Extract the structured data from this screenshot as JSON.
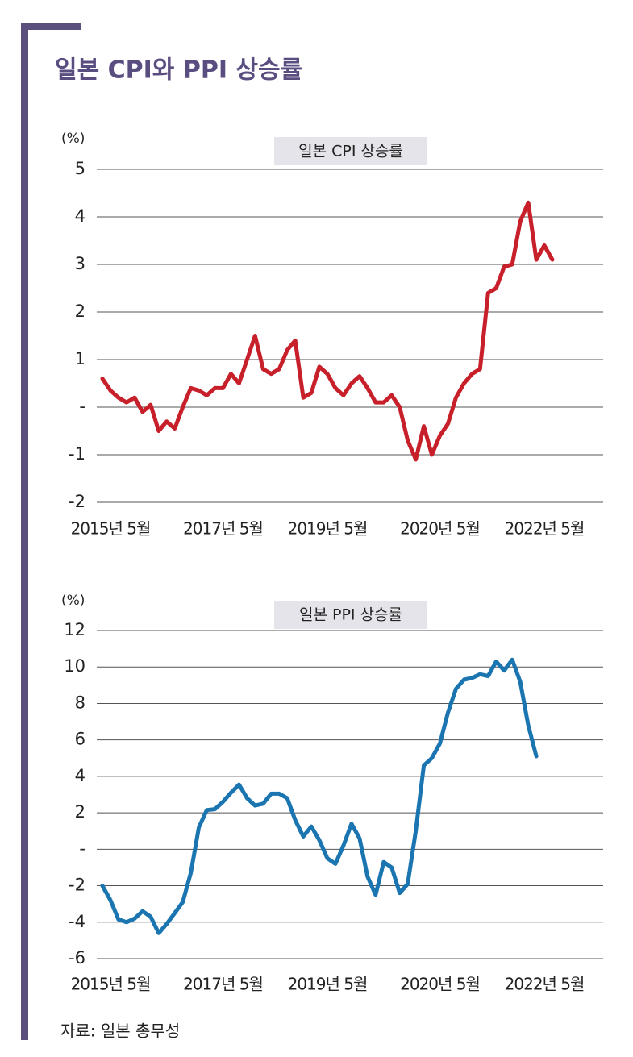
{
  "title": "일본 CPI와 PPI 상승률",
  "source": "자료: 일본 총무성",
  "chart_data": [
    {
      "type": "line",
      "title": "일본 CPI 상승률",
      "y_label": "(%)",
      "color": "#c8202b",
      "categories": [
        null,
        "2015년 5월",
        null,
        null,
        null,
        null,
        null,
        null,
        null,
        null,
        null,
        null,
        null,
        null,
        null,
        "2017년 5월",
        null,
        null,
        null,
        null,
        null,
        null,
        null,
        null,
        null,
        null,
        null,
        null,
        "2019년 5월",
        null,
        null,
        null,
        null,
        null,
        null,
        null,
        null,
        null,
        null,
        null,
        null,
        null,
        "2020년 5월",
        null,
        null,
        null,
        null,
        null,
        null,
        null,
        null,
        null,
        null,
        null,
        null,
        "2022년 5월",
        null
      ],
      "values": [
        0.6,
        0.35,
        0.2,
        0.1,
        0.2,
        -0.1,
        0.05,
        -0.5,
        -0.3,
        -0.45,
        0.0,
        0.4,
        0.35,
        0.25,
        0.4,
        0.4,
        0.7,
        0.5,
        1.0,
        1.5,
        0.8,
        0.7,
        0.8,
        1.2,
        1.4,
        0.2,
        0.3,
        0.85,
        0.7,
        0.4,
        0.25,
        0.5,
        0.65,
        0.4,
        0.1,
        0.1,
        0.25,
        0.0,
        -0.7,
        -1.1,
        -0.4,
        -1.0,
        -0.6,
        -0.35,
        0.2,
        0.5,
        0.7,
        0.8,
        2.4,
        2.5,
        2.95,
        3.0,
        3.9,
        4.3,
        3.1,
        3.4,
        3.1
      ],
      "ylim": [
        -2,
        5
      ],
      "yticks": [
        -2,
        -1,
        {
          "value": 0,
          "label": "-"
        },
        1,
        2,
        3,
        4,
        5
      ],
      "grid": true
    },
    {
      "type": "line",
      "title": "일본 PPI 상승률",
      "y_label": "(%)",
      "color": "#1a75b0",
      "categories": [
        null,
        "2015년 5월",
        null,
        null,
        null,
        null,
        null,
        null,
        null,
        null,
        null,
        null,
        null,
        null,
        null,
        "2017년 5월",
        null,
        null,
        null,
        null,
        null,
        null,
        null,
        null,
        null,
        null,
        null,
        null,
        "2019년 5월",
        null,
        null,
        null,
        null,
        null,
        null,
        null,
        null,
        null,
        null,
        null,
        null,
        null,
        "2020년 5월",
        null,
        null,
        null,
        null,
        null,
        null,
        null,
        null,
        null,
        null,
        null,
        null,
        "2022년 5월",
        null
      ],
      "values": [
        -2.0,
        -2.8,
        -3.85,
        -4.0,
        -3.8,
        -3.4,
        -3.7,
        -4.6,
        -4.1,
        -3.5,
        -2.9,
        -1.3,
        1.2,
        2.15,
        2.2,
        2.6,
        3.1,
        3.55,
        2.8,
        2.4,
        2.5,
        3.05,
        3.05,
        2.8,
        1.6,
        0.7,
        1.25,
        0.5,
        -0.5,
        -0.8,
        0.2,
        1.4,
        0.6,
        -1.5,
        -2.5,
        -0.7,
        -1.0,
        -2.4,
        -1.9,
        1.0,
        4.6,
        5.0,
        5.8,
        7.5,
        8.8,
        9.3,
        9.4,
        9.6,
        9.5,
        10.3,
        9.8,
        10.4,
        9.2,
        6.8,
        5.1,
        null,
        null
      ],
      "ylim": [
        -6,
        12
      ],
      "yticks": [
        -6,
        -4,
        -2,
        {
          "value": 0,
          "label": "-"
        },
        2,
        4,
        6,
        8,
        10,
        12
      ],
      "grid": true
    }
  ]
}
